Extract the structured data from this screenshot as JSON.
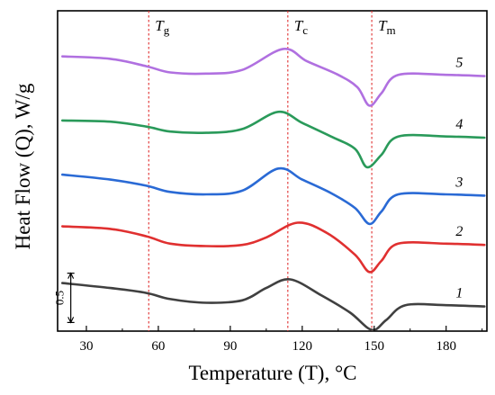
{
  "chart_data": {
    "type": "line",
    "xlabel": "Temperature (T), °C",
    "ylabel": "Heat Flow (Q), W/g",
    "xlim": [
      18,
      197
    ],
    "ylim": [
      0,
      13
    ],
    "x_ticks": [
      30,
      60,
      90,
      120,
      150,
      180
    ],
    "y_ticks_shown": false,
    "grid": false,
    "scale_bar": {
      "label": "0.5",
      "value": 0.5
    },
    "vertical_lines": [
      {
        "name": "Tg",
        "symbol": "T",
        "subscript": "g",
        "x": 56,
        "color": "#e03030"
      },
      {
        "name": "Tc",
        "symbol": "T",
        "subscript": "c",
        "x": 114,
        "color": "#e03030"
      },
      {
        "name": "Tm",
        "symbol": "T",
        "subscript": "m",
        "x": 149,
        "color": "#e03030"
      }
    ],
    "series": [
      {
        "name": "1",
        "color": "#404040",
        "x": [
          20,
          40,
          55,
          65,
          80,
          95,
          105,
          115,
          128,
          140,
          149,
          155,
          163,
          180,
          196
        ],
        "y": [
          1.95,
          1.75,
          1.55,
          1.3,
          1.15,
          1.25,
          1.75,
          2.1,
          1.45,
          0.75,
          0.05,
          0.45,
          1.05,
          1.05,
          1.0
        ]
      },
      {
        "name": "2",
        "color": "#e03030",
        "x": [
          20,
          40,
          55,
          65,
          80,
          95,
          105,
          118,
          130,
          142,
          148,
          153,
          160,
          180,
          196
        ],
        "y": [
          4.25,
          4.15,
          3.85,
          3.55,
          3.45,
          3.5,
          3.8,
          4.4,
          4.0,
          3.1,
          2.4,
          2.85,
          3.55,
          3.55,
          3.5
        ]
      },
      {
        "name": "3",
        "color": "#2a6ad5",
        "x": [
          20,
          40,
          55,
          65,
          80,
          95,
          110,
          120,
          132,
          142,
          148,
          153,
          160,
          180,
          196
        ],
        "y": [
          6.35,
          6.15,
          5.9,
          5.65,
          5.55,
          5.7,
          6.6,
          6.15,
          5.6,
          5.0,
          4.35,
          4.85,
          5.55,
          5.55,
          5.5
        ]
      },
      {
        "name": "4",
        "color": "#2a9a5a",
        "x": [
          20,
          40,
          55,
          65,
          80,
          95,
          110,
          120,
          132,
          142,
          147,
          153,
          160,
          180,
          196
        ],
        "y": [
          8.55,
          8.5,
          8.3,
          8.1,
          8.05,
          8.2,
          8.9,
          8.45,
          7.9,
          7.4,
          6.65,
          7.15,
          7.9,
          7.9,
          7.85
        ]
      },
      {
        "name": "5",
        "color": "#b070e0",
        "x": [
          20,
          40,
          55,
          65,
          80,
          95,
          112,
          122,
          135,
          143,
          148,
          153,
          160,
          180,
          196
        ],
        "y": [
          11.15,
          11.05,
          10.75,
          10.5,
          10.45,
          10.6,
          11.45,
          10.95,
          10.4,
          9.9,
          9.15,
          9.65,
          10.4,
          10.4,
          10.35
        ]
      }
    ]
  }
}
